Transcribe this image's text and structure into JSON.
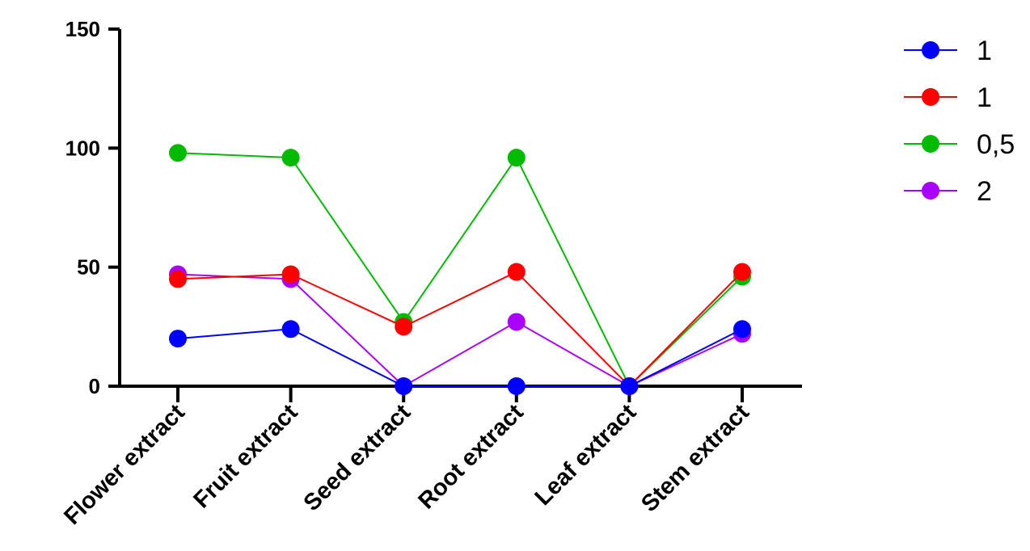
{
  "chart_data": {
    "type": "line",
    "categories": [
      "Flower extract",
      "Fruit extract",
      "Seed extract",
      "Root extract",
      "Leaf extract",
      "Stem extract"
    ],
    "series": [
      {
        "name": "1",
        "color": "#0000ff",
        "values": [
          20,
          24,
          0,
          0,
          0,
          24
        ]
      },
      {
        "name": "1",
        "color": "#ff0000",
        "values": [
          45,
          47,
          25,
          48,
          0,
          48
        ]
      },
      {
        "name": "0,5",
        "color": "#00bb00",
        "values": [
          98,
          96,
          27,
          96,
          0,
          46
        ]
      },
      {
        "name": "2",
        "color": "#aa00ff",
        "values": [
          47,
          45,
          0,
          27,
          0,
          22
        ]
      }
    ],
    "draw_order": [
      2,
      3,
      1,
      0
    ],
    "yticks": [
      0,
      50,
      100,
      150
    ],
    "ytick_labels": [
      "0",
      "50",
      "100",
      "150"
    ],
    "ylim": [
      0,
      150
    ],
    "grid": false,
    "legend_position": "top-right"
  }
}
